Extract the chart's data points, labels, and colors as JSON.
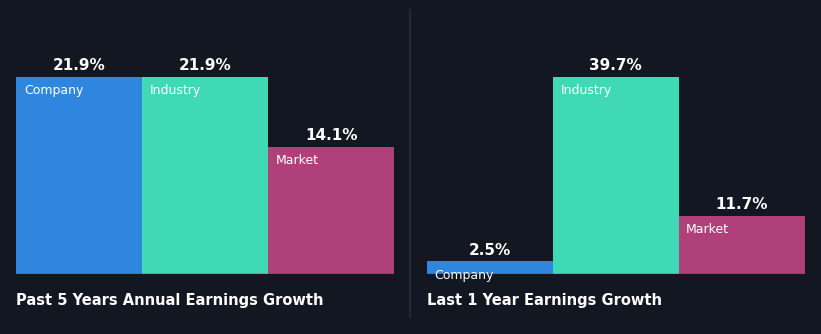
{
  "background_color": "#131722",
  "chart1": {
    "title": "Past 5 Years Annual Earnings Growth",
    "bars": [
      {
        "label": "Company",
        "value": 21.9,
        "color": "#2e86de"
      },
      {
        "label": "Industry",
        "value": 21.9,
        "color": "#40d9b5"
      },
      {
        "label": "Market",
        "value": 14.1,
        "color": "#b0407a"
      }
    ]
  },
  "chart2": {
    "title": "Last 1 Year Earnings Growth",
    "bars": [
      {
        "label": "Company",
        "value": 2.5,
        "color": "#2e86de"
      },
      {
        "label": "Industry",
        "value": 39.7,
        "color": "#40d9b5"
      },
      {
        "label": "Market",
        "value": 11.7,
        "color": "#b0407a"
      }
    ]
  },
  "text_color": "#ffffff",
  "label_fontsize": 9,
  "value_fontsize": 11,
  "title_fontsize": 10.5,
  "divider_color": "#2a2d3a",
  "baseline_color": "#3a3d50"
}
